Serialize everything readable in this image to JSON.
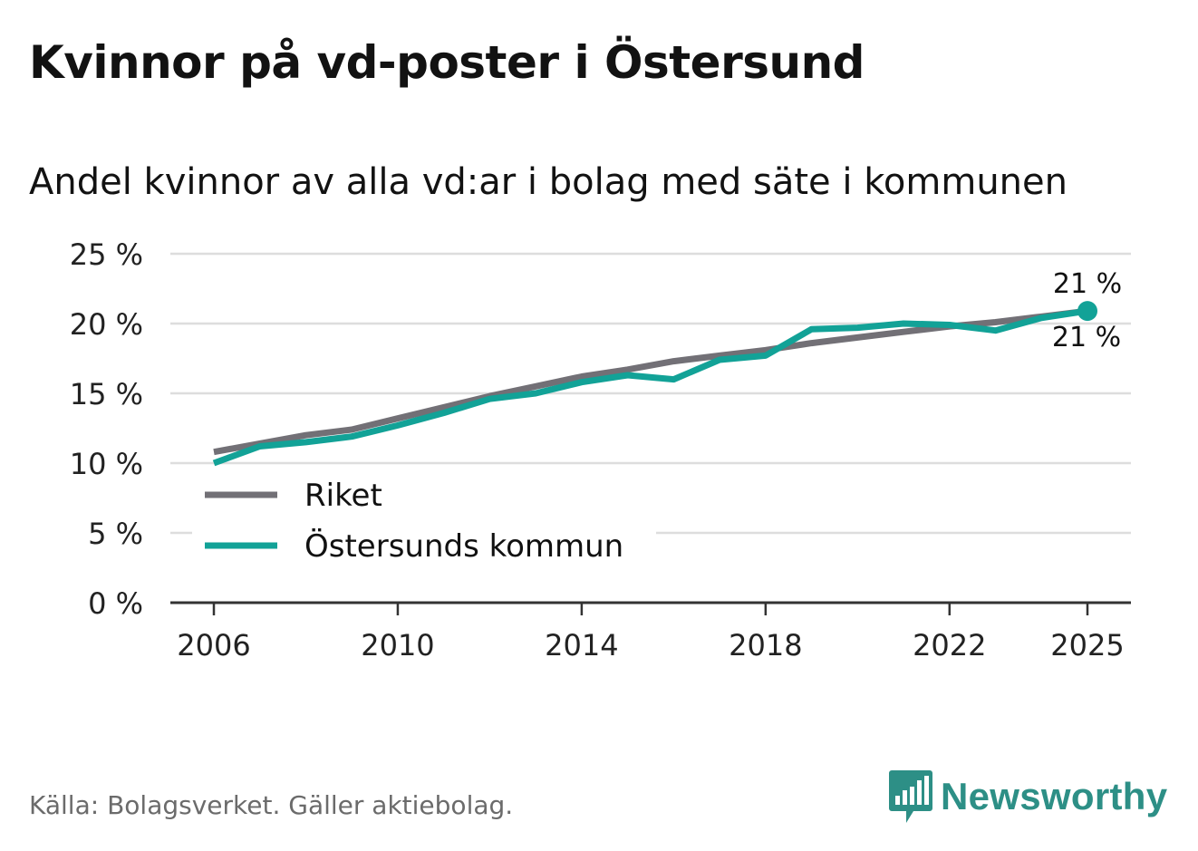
{
  "header": {
    "title": "Kvinnor på vd-poster i Östersund",
    "subtitle": "Andel kvinnor av alla vd:ar i bolag med säte i kommunen"
  },
  "footer": {
    "source": "Källa: Bolagsverket. Gäller aktiebolag.",
    "brand": "Newsworthy"
  },
  "colors": {
    "riket": "#727076",
    "ostersund": "#12a297",
    "grid": "#dddddd",
    "axis": "#333333",
    "brand": "#2d8f86"
  },
  "chart_data": {
    "type": "line",
    "title": "Kvinnor på vd-poster i Östersund",
    "subtitle": "Andel kvinnor av alla vd:ar i bolag med säte i kommunen",
    "xlabel": "",
    "ylabel": "",
    "ylim": [
      0,
      25
    ],
    "xlim": [
      2006,
      2025
    ],
    "yticks": [
      0,
      5,
      10,
      15,
      20,
      25
    ],
    "ytick_labels": [
      "0 %",
      "5 %",
      "10 %",
      "15 %",
      "20 %",
      "25 %"
    ],
    "xticks": [
      2006,
      2010,
      2014,
      2018,
      2022,
      2025
    ],
    "xtick_labels": [
      "2006",
      "2010",
      "2014",
      "2018",
      "2022",
      "2025"
    ],
    "grid": true,
    "legend_position": "bottom-left",
    "x": [
      2006,
      2007,
      2008,
      2009,
      2010,
      2011,
      2012,
      2013,
      2014,
      2015,
      2016,
      2017,
      2018,
      2019,
      2020,
      2021,
      2022,
      2023,
      2024,
      2025
    ],
    "series": [
      {
        "name": "Riket",
        "values": [
          10.8,
          11.4,
          12.0,
          12.4,
          13.2,
          14.0,
          14.8,
          15.5,
          16.2,
          16.7,
          17.3,
          17.7,
          18.1,
          18.6,
          19.0,
          19.4,
          19.8,
          20.1,
          20.5,
          20.9
        ],
        "end_label": "21 %"
      },
      {
        "name": "Östersunds kommun",
        "values": [
          10.0,
          11.2,
          11.5,
          11.9,
          12.7,
          13.6,
          14.6,
          15.0,
          15.8,
          16.3,
          16.0,
          17.4,
          17.7,
          19.6,
          19.7,
          20.0,
          19.9,
          19.5,
          20.4,
          20.9
        ],
        "end_label": "21 %"
      }
    ]
  }
}
